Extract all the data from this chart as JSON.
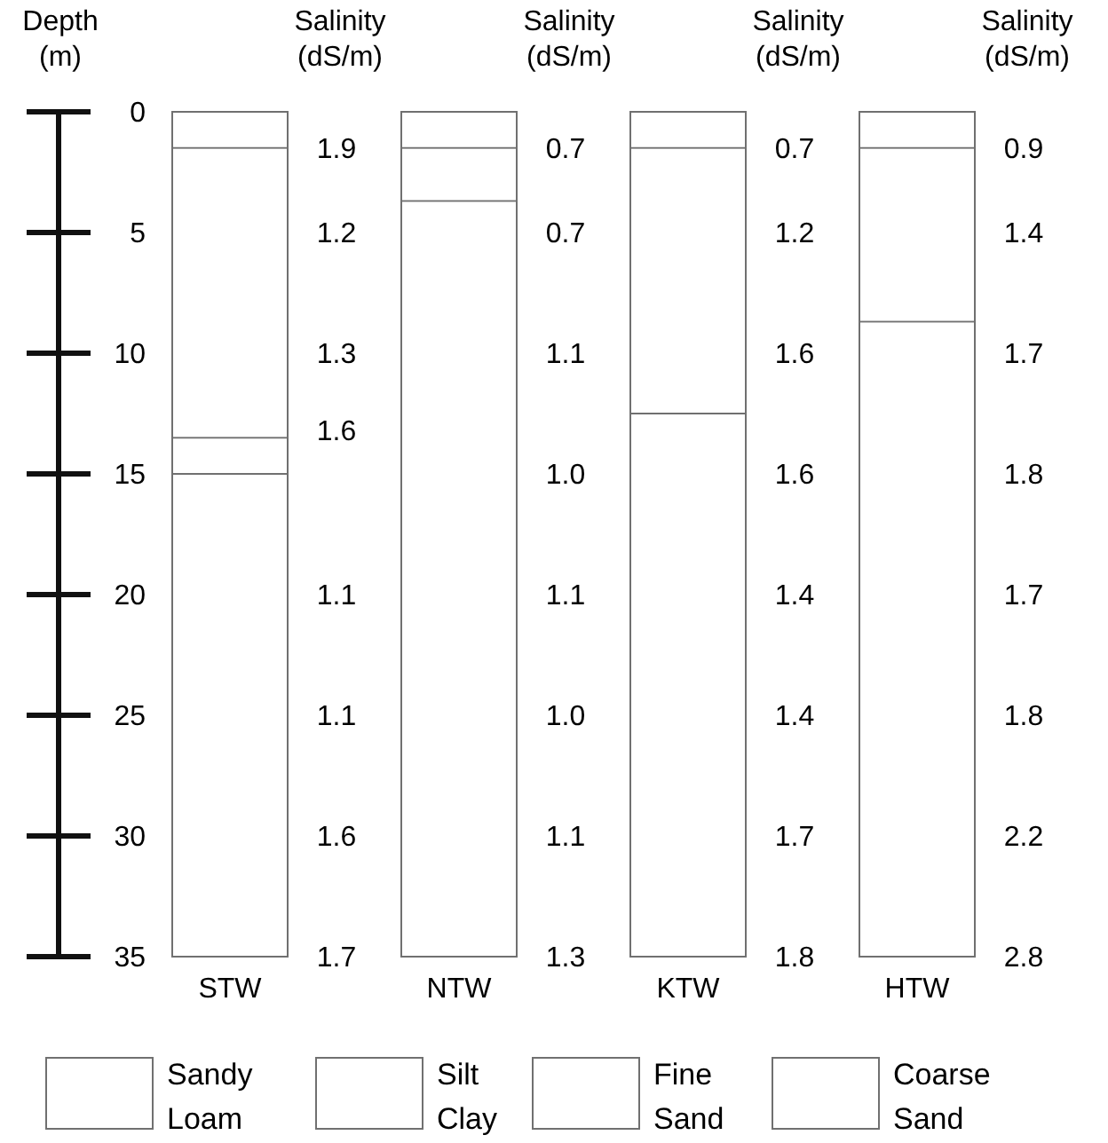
{
  "chart_data": {
    "type": "bar",
    "ylabel": "Depth (m)",
    "categories": [
      "STW",
      "NTW",
      "KTW",
      "HTW"
    ],
    "ylim": [
      35,
      0
    ],
    "yticks": [
      0,
      5,
      10,
      15,
      20,
      25,
      30,
      35
    ],
    "grid": false,
    "legend": "bottom",
    "series": [
      {
        "name": "Sandy Loam",
        "color": "#ffffff",
        "base": [
          0,
          0,
          0,
          0
        ],
        "values": [
          1.5,
          1.5,
          1.5,
          1.5
        ]
      },
      {
        "name": "Silt Clay",
        "color": "#ffffff",
        "base": [
          13.5,
          null,
          null,
          null
        ],
        "values": [
          1.5,
          null,
          null,
          null
        ]
      },
      {
        "name": "Fine Sand",
        "color": "#ffffff",
        "base": [
          1.5,
          1.5,
          1.5,
          1.5
        ],
        "values": [
          12,
          2.2,
          11,
          7.2
        ]
      },
      {
        "name": "Coarse Sand",
        "color": "#ffffff",
        "base": [
          15,
          3.7,
          12.5,
          8.7
        ],
        "values": [
          20,
          31.3,
          22.5,
          26.3
        ]
      }
    ],
    "annotations": [
      "Salinity (dS/m)",
      "Salinity (dS/m)",
      "Salinity (dS/m)",
      "Salinity (dS/m)",
      "1.9",
      "1.2",
      "1.3",
      "1.6",
      "1.1",
      "1.1",
      "1.6",
      "1.7",
      "0.7",
      "0.7",
      "1.1",
      "1.0",
      "1.1",
      "1.0",
      "1.1",
      "1.3",
      "0.7",
      "1.2",
      "1.6",
      "1.6",
      "1.4",
      "1.4",
      "1.7",
      "1.8",
      "0.9",
      "1.4",
      "1.7",
      "1.8",
      "1.7",
      "1.8",
      "2.2",
      "2.8"
    ]
  }
}
